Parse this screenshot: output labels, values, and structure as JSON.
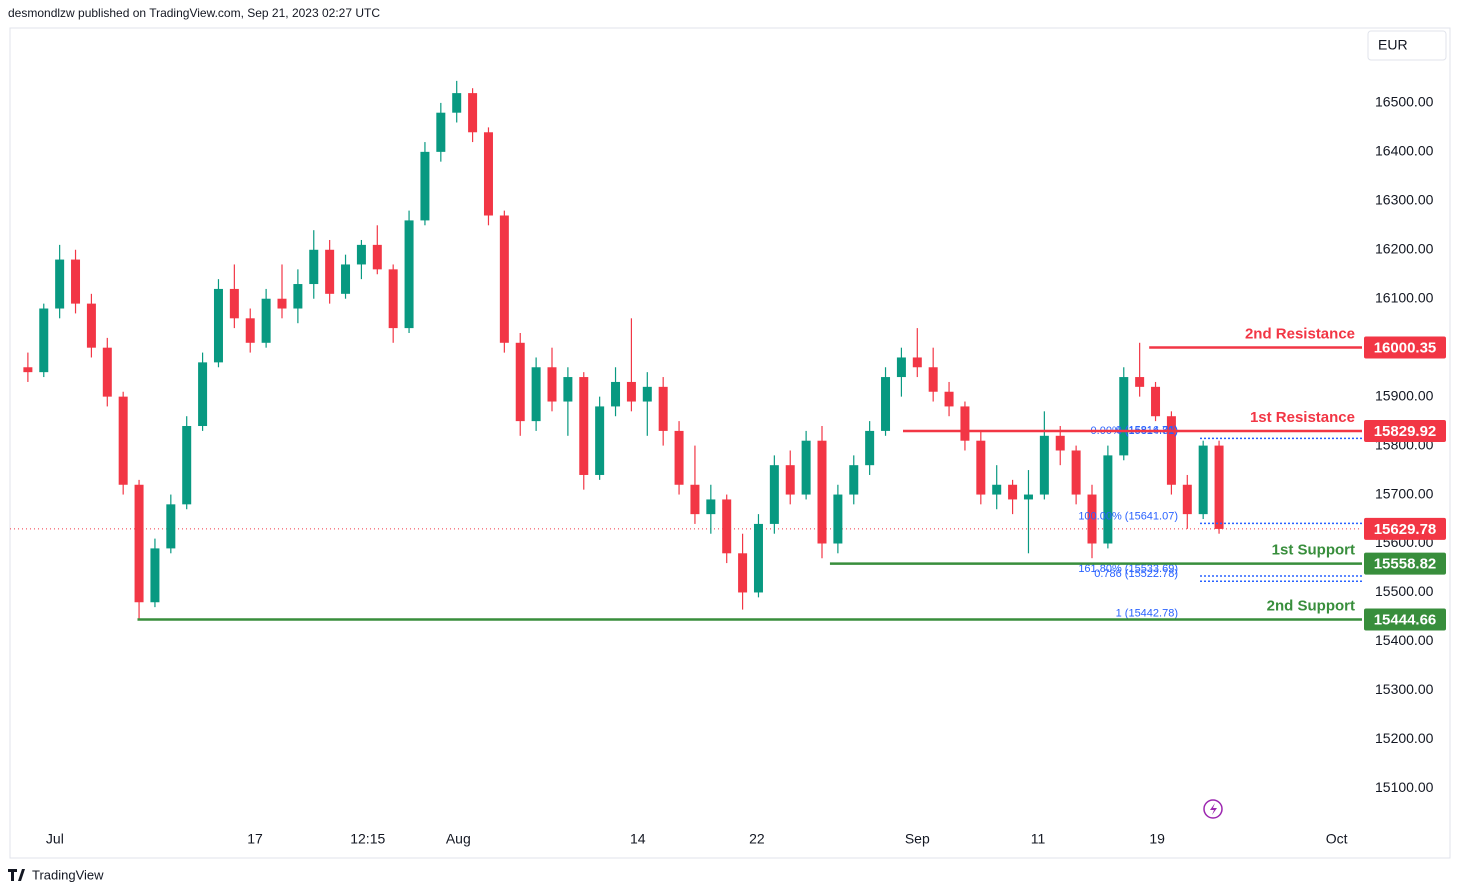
{
  "header": {
    "byline": "desmondlzw published on TradingView.com, Sep 21, 2023 02:27 UTC",
    "brand": "TradingView"
  },
  "chart_data": {
    "type": "candlestick",
    "currency": "EUR",
    "up_color": "#089981",
    "down_color": "#f23645",
    "grid": false,
    "xlim": [
      -1,
      84
    ],
    "xticks": [
      {
        "value": 1.7,
        "label": "Jul"
      },
      {
        "value": 14.3,
        "label": "17"
      },
      {
        "value": 21.4,
        "label": "12:15"
      },
      {
        "value": 27.1,
        "label": "Aug"
      },
      {
        "value": 38.4,
        "label": "14"
      },
      {
        "value": 45.9,
        "label": "22"
      },
      {
        "value": 56,
        "label": "Sep"
      },
      {
        "value": 63.6,
        "label": "11"
      },
      {
        "value": 71.1,
        "label": "19"
      },
      {
        "value": 82.4,
        "label": "Oct"
      }
    ],
    "ylim": [
      15025,
      16653
    ],
    "yticks": [
      {
        "value": 15100,
        "label": "15100.00"
      },
      {
        "value": 15200,
        "label": "15200.00"
      },
      {
        "value": 15300,
        "label": "15300.00"
      },
      {
        "value": 15400,
        "label": "15400.00"
      },
      {
        "value": 15500,
        "label": "15500.00"
      },
      {
        "value": 15600,
        "label": "15600.00"
      },
      {
        "value": 15700,
        "label": "15700.00"
      },
      {
        "value": 15800,
        "label": "15800.00"
      },
      {
        "value": 15900,
        "label": "15900.00"
      },
      {
        "value": 16000,
        "label": "16000.00"
      },
      {
        "value": 16100,
        "label": "16100.00"
      },
      {
        "value": 16200,
        "label": "16200.00"
      },
      {
        "value": 16300,
        "label": "16300.00"
      },
      {
        "value": 16400,
        "label": "16400.00"
      },
      {
        "value": 16500,
        "label": "16500.00"
      }
    ],
    "x": [
      0,
      1,
      2,
      3,
      4,
      5,
      6,
      7,
      8,
      9,
      10,
      11,
      12,
      13,
      14,
      15,
      16,
      17,
      18,
      19,
      20,
      21,
      22,
      23,
      24,
      25,
      26,
      27,
      28,
      29,
      30,
      31,
      32,
      33,
      34,
      35,
      36,
      37,
      38,
      39,
      40,
      41,
      42,
      43,
      44,
      45,
      46,
      47,
      48,
      49,
      50,
      51,
      52,
      53,
      54,
      55,
      56,
      57,
      58,
      59,
      60,
      61,
      62,
      63,
      64,
      65,
      66,
      67,
      68,
      69,
      70,
      71,
      72,
      73,
      74,
      75
    ],
    "open": [
      15960,
      15950,
      16080,
      16180,
      16090,
      16000,
      15900,
      15720,
      15480,
      15590,
      15680,
      15840,
      15970,
      16120,
      16060,
      16010,
      16100,
      16080,
      16130,
      16200,
      16110,
      16170,
      16210,
      16160,
      16040,
      16260,
      16400,
      16480,
      16520,
      16440,
      16270,
      16010,
      15850,
      15960,
      15890,
      15940,
      15740,
      15880,
      15930,
      15890,
      15920,
      15830,
      15720,
      15660,
      15690,
      15580,
      15500,
      15640,
      15760,
      15700,
      15810,
      15600,
      15700,
      15760,
      15830,
      15940,
      15980,
      15960,
      15910,
      15880,
      15810,
      15700,
      15720,
      15690,
      15700,
      15820,
      15790,
      15700,
      15600,
      15780,
      15940,
      15920,
      15860,
      15720,
      15660,
      15800
    ],
    "high": [
      15990,
      16090,
      16210,
      16200,
      16110,
      16020,
      15910,
      15730,
      15610,
      15700,
      15860,
      15990,
      16140,
      16170,
      16080,
      16120,
      16170,
      16160,
      16240,
      16220,
      16190,
      16220,
      16250,
      16170,
      16280,
      16420,
      16500,
      16545,
      16530,
      16450,
      16280,
      16030,
      15980,
      16000,
      15960,
      15950,
      15900,
      15960,
      16060,
      15950,
      15940,
      15850,
      15800,
      15720,
      15700,
      15620,
      15660,
      15780,
      15790,
      15830,
      15840,
      15720,
      15780,
      15850,
      15960,
      16000,
      16040,
      16000,
      15930,
      15890,
      15830,
      15760,
      15730,
      15750,
      15870,
      15840,
      15800,
      15720,
      15800,
      15960,
      16010,
      15930,
      15870,
      15740,
      15810,
      15810
    ],
    "low": [
      15930,
      15940,
      16060,
      16070,
      15980,
      15880,
      15700,
      15444,
      15470,
      15580,
      15670,
      15830,
      15960,
      16040,
      15990,
      16000,
      16060,
      16050,
      16100,
      16090,
      16100,
      16140,
      16150,
      16010,
      16030,
      16250,
      16380,
      16460,
      16420,
      16250,
      15990,
      15820,
      15830,
      15870,
      15820,
      15710,
      15730,
      15860,
      15870,
      15820,
      15800,
      15700,
      15640,
      15620,
      15560,
      15465,
      15490,
      15620,
      15680,
      15690,
      15570,
      15580,
      15680,
      15740,
      15820,
      15900,
      15940,
      15890,
      15860,
      15790,
      15680,
      15670,
      15660,
      15580,
      15690,
      15760,
      15680,
      15570,
      15590,
      15770,
      15900,
      15850,
      15700,
      15630,
      15650,
      15620
    ],
    "close": [
      15950,
      16080,
      16180,
      16090,
      16000,
      15900,
      15720,
      15480,
      15590,
      15680,
      15840,
      15970,
      16120,
      16060,
      16010,
      16100,
      16080,
      16130,
      16200,
      16110,
      16170,
      16210,
      16160,
      16040,
      16260,
      16400,
      16480,
      16520,
      16440,
      16270,
      16010,
      15850,
      15960,
      15890,
      15940,
      15740,
      15880,
      15930,
      15890,
      15920,
      15830,
      15720,
      15660,
      15690,
      15580,
      15500,
      15640,
      15760,
      15700,
      15810,
      15600,
      15700,
      15760,
      15830,
      15940,
      15980,
      15960,
      15910,
      15880,
      15810,
      15700,
      15720,
      15690,
      15700,
      15820,
      15790,
      15700,
      15600,
      15780,
      15940,
      15920,
      15860,
      15720,
      15660,
      15800,
      15629.78
    ],
    "levels": [
      {
        "name": "2nd Resistance",
        "value": 16000.35,
        "value_label": "16000.35",
        "color": "#f23645",
        "start": 70.6
      },
      {
        "name": "1st Resistance",
        "value": 15829.92,
        "value_label": "15829.92",
        "color": "#f23645",
        "start": 55.1
      },
      {
        "name": "1st Support",
        "value": 15558.82,
        "value_label": "15558.82",
        "color": "#388e3c",
        "start": 50.5
      },
      {
        "name": "2nd Support",
        "value": 15444.66,
        "value_label": "15444.66",
        "color": "#388e3c",
        "start": 6.9
      }
    ],
    "last_price": {
      "value": 15629.78,
      "label": "15629.78",
      "color": "#f23645"
    },
    "fib_color": "#2962ff",
    "fib_labels": [
      {
        "label": "0 (15816.70)",
        "price": 15816.7,
        "line": false
      },
      {
        "label": "0.00% (15814.81)",
        "price": 15814.81,
        "line": true
      },
      {
        "label": "100.00% (15641.07)",
        "price": 15641.07,
        "line": true
      },
      {
        "label": "161.80% (15533.69)",
        "price": 15533.69,
        "line": true
      },
      {
        "label": "0.786 (15522.78)",
        "price": 15522.78,
        "line": true
      },
      {
        "label": "1 (15442.78)",
        "price": 15442.78,
        "line": false
      }
    ],
    "fib_start": 73.8
  }
}
